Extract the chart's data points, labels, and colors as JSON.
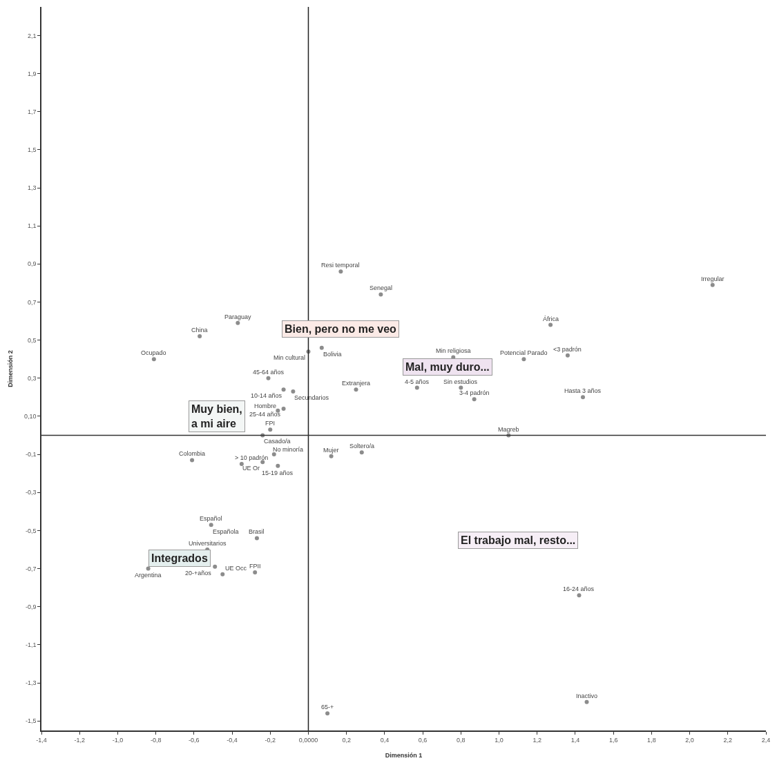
{
  "chart_data": {
    "type": "scatter",
    "xlabel": "Dimensión 1",
    "ylabel": "Dimensión 2",
    "xlim": [
      -1.4,
      2.4
    ],
    "ylim": [
      -1.55,
      2.25
    ],
    "xticks": [
      {
        "value": -1.4,
        "label": "-1,4"
      },
      {
        "value": -1.2,
        "label": "-1,2"
      },
      {
        "value": -1.0,
        "label": "-1,0"
      },
      {
        "value": -0.8,
        "label": "-0,8"
      },
      {
        "value": -0.6,
        "label": "-0,6"
      },
      {
        "value": -0.4,
        "label": "-0,4"
      },
      {
        "value": -0.2,
        "label": "-0,2"
      },
      {
        "value": 0,
        "label": "0,0000"
      },
      {
        "value": 0.2,
        "label": "0,2"
      },
      {
        "value": 0.4,
        "label": "0,4"
      },
      {
        "value": 0.6,
        "label": "0,6"
      },
      {
        "value": 0.8,
        "label": "0,8"
      },
      {
        "value": 1.0,
        "label": "1,0"
      },
      {
        "value": 1.2,
        "label": "1,2"
      },
      {
        "value": 1.4,
        "label": "1,4"
      },
      {
        "value": 1.6,
        "label": "1,6"
      },
      {
        "value": 1.8,
        "label": "1,8"
      },
      {
        "value": 2.0,
        "label": "2,0"
      },
      {
        "value": 2.2,
        "label": "2,2"
      },
      {
        "value": 2.4,
        "label": "2,4"
      }
    ],
    "yticks": [
      {
        "value": -1.5,
        "label": "-1,5"
      },
      {
        "value": -1.3,
        "label": "-1,3"
      },
      {
        "value": -1.1,
        "label": "-1,1"
      },
      {
        "value": -0.9,
        "label": "-0,9"
      },
      {
        "value": -0.7,
        "label": "-0,7"
      },
      {
        "value": -0.5,
        "label": "-0,5"
      },
      {
        "value": -0.3,
        "label": "-0,3"
      },
      {
        "value": -0.1,
        "label": "-0,1"
      },
      {
        "value": 0.1,
        "label": "0,10"
      },
      {
        "value": 0.3,
        "label": "0,3"
      },
      {
        "value": 0.5,
        "label": "0,5"
      },
      {
        "value": 0.7,
        "label": "0,7"
      },
      {
        "value": 0.9,
        "label": "0,9"
      },
      {
        "value": 1.1,
        "label": "1,1"
      },
      {
        "value": 1.3,
        "label": "1,3"
      },
      {
        "value": 1.5,
        "label": "1,5"
      },
      {
        "value": 1.7,
        "label": "1,7"
      },
      {
        "value": 1.9,
        "label": "1,9"
      },
      {
        "value": 2.1,
        "label": "2,1"
      }
    ],
    "marker": "circle",
    "ref_lines": [
      {
        "axis": "x",
        "value": 0,
        "color": "#222222"
      },
      {
        "axis": "y",
        "value": 0,
        "color": "#333333"
      }
    ],
    "series": [
      {
        "color": "#8c8c8c",
        "x": [
          0.17,
          0.38,
          -0.37,
          -0.57,
          -0.81,
          0.07,
          0.0,
          -0.21,
          -0.13,
          -0.08,
          -0.16,
          -0.13,
          -0.2,
          -0.24,
          -0.18,
          -0.35,
          -0.24,
          -0.16,
          -0.61,
          0.25,
          0.12,
          0.28,
          0.57,
          0.76,
          0.8,
          0.87,
          1.13,
          1.36,
          1.27,
          2.12,
          1.44,
          1.05,
          1.42,
          1.46,
          0.1,
          -0.51,
          -0.53,
          -0.27,
          -0.84,
          -0.49,
          -0.45,
          -0.28
        ],
        "values": [
          0.86,
          0.74,
          0.59,
          0.52,
          0.4,
          0.46,
          0.44,
          0.3,
          0.24,
          0.23,
          0.13,
          0.14,
          0.03,
          0.0,
          -0.1,
          -0.15,
          -0.14,
          -0.16,
          -0.13,
          0.24,
          -0.11,
          -0.09,
          0.25,
          0.41,
          0.25,
          0.19,
          0.4,
          0.42,
          0.58,
          0.79,
          0.2,
          0.0,
          -0.84,
          -1.4,
          -1.46,
          -0.47,
          -0.6,
          -0.54,
          -0.7,
          -0.69,
          -0.73,
          -0.72
        ]
      }
    ],
    "annotations": [
      "Bien, pero no me veo",
      "Mal, muy duro...",
      "Muy bien,\na mi aire",
      "Integrados",
      "El trabajo mal, resto...",
      {
        "text": "Resi temporal",
        "x": 0.17,
        "y": 0.86
      },
      {
        "text": "Senegal",
        "x": 0.38,
        "y": 0.74
      },
      {
        "text": "Paraguay",
        "x": -0.37,
        "y": 0.59
      },
      {
        "text": "China",
        "x": -0.57,
        "y": 0.52
      },
      {
        "text": "Ocupado",
        "x": -0.81,
        "y": 0.4
      },
      {
        "text": "Bolivia",
        "x": 0.07,
        "y": 0.46
      },
      {
        "text": "Min cultural",
        "x": 0.0,
        "y": 0.44
      },
      {
        "text": "45-64 años",
        "x": -0.21,
        "y": 0.3
      },
      {
        "text": "10-14 años",
        "x": -0.13,
        "y": 0.24
      },
      {
        "text": "Secundarios",
        "x": -0.08,
        "y": 0.23
      },
      {
        "text": "Hombre",
        "x": -0.16,
        "y": 0.13
      },
      {
        "text": "25-44 años",
        "x": -0.13,
        "y": 0.14
      },
      {
        "text": "FPI",
        "x": -0.2,
        "y": 0.03
      },
      {
        "text": "Casado/a",
        "x": -0.24,
        "y": 0.0
      },
      {
        "text": "No minoría",
        "x": -0.18,
        "y": -0.1
      },
      {
        "text": "> 10 padrón",
        "x": -0.35,
        "y": -0.15
      },
      {
        "text": "UE Or",
        "x": -0.24,
        "y": -0.14
      },
      {
        "text": "15-19 años",
        "x": -0.16,
        "y": -0.16
      },
      {
        "text": "Colombia",
        "x": -0.61,
        "y": -0.13
      },
      {
        "text": "Extranjera",
        "x": 0.25,
        "y": 0.24
      },
      {
        "text": "Mujer",
        "x": 0.12,
        "y": -0.11
      },
      {
        "text": "Soltero/a",
        "x": 0.28,
        "y": -0.09
      },
      {
        "text": "4-5 años",
        "x": 0.57,
        "y": 0.25
      },
      {
        "text": "Min religiosa",
        "x": 0.76,
        "y": 0.41
      },
      {
        "text": "Sin estudios",
        "x": 0.8,
        "y": 0.25
      },
      {
        "text": "3-4 padrón",
        "x": 0.87,
        "y": 0.19
      },
      {
        "text": "Potencial Parado",
        "x": 1.13,
        "y": 0.4
      },
      {
        "text": "<3 padrón",
        "x": 1.36,
        "y": 0.42
      },
      {
        "text": "África",
        "x": 1.27,
        "y": 0.58
      },
      {
        "text": "Irregular",
        "x": 2.12,
        "y": 0.79
      },
      {
        "text": "Hasta 3 años",
        "x": 1.44,
        "y": 0.2
      },
      {
        "text": "Magreb",
        "x": 1.05,
        "y": 0.0
      },
      {
        "text": "16-24 años",
        "x": 1.42,
        "y": -0.84
      },
      {
        "text": "Inactivo",
        "x": 1.46,
        "y": -1.4
      },
      {
        "text": "65-+",
        "x": 0.1,
        "y": -1.46
      },
      {
        "text": "Español",
        "x": -0.51,
        "y": -0.47
      },
      {
        "text": "Española",
        "x": -0.51,
        "y": -0.47
      },
      {
        "text": "Universitarios",
        "x": -0.53,
        "y": -0.6
      },
      {
        "text": "Brasil",
        "x": -0.27,
        "y": -0.54
      },
      {
        "text": "Argentina",
        "x": -0.84,
        "y": -0.7
      },
      {
        "text": "20-+años",
        "x": -0.49,
        "y": -0.69
      },
      {
        "text": "UE Occ",
        "x": -0.45,
        "y": -0.73
      },
      {
        "text": "FPII",
        "x": -0.28,
        "y": -0.72
      }
    ]
  }
}
